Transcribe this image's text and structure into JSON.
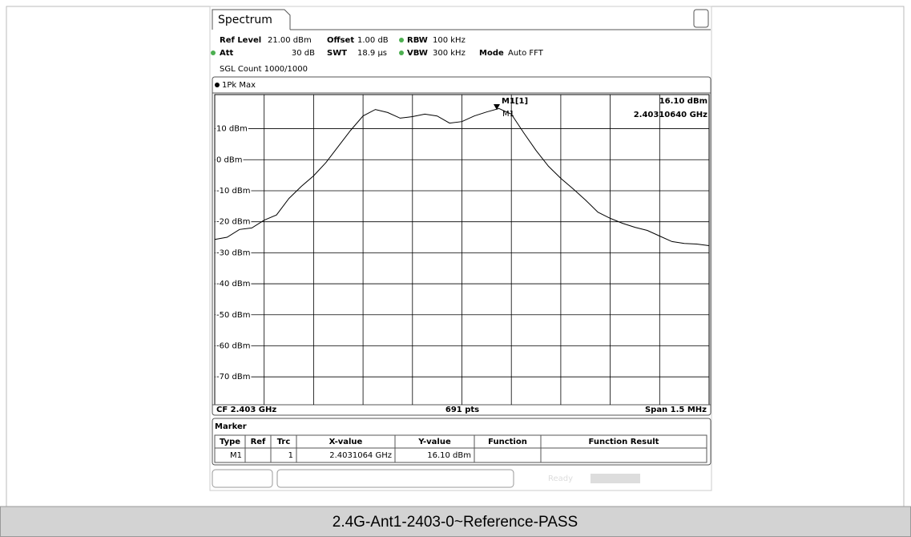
{
  "tab": "Spectrum",
  "settings": {
    "ref_level_label": "Ref Level",
    "ref_level": "21.00 dBm",
    "offset_label": "Offset",
    "offset": "1.00 dB",
    "rbw_label": "RBW",
    "rbw": "100 kHz",
    "att_label": "Att",
    "att": "30 dB",
    "swt_label": "SWT",
    "swt": "18.9 µs",
    "vbw_label": "VBW",
    "vbw": "300 kHz",
    "mode_label": "Mode",
    "mode": "Auto FFT",
    "sgl_count": "SGL Count 1000/1000"
  },
  "spectrum": {
    "trace_label": "1Pk Max",
    "ylim": [
      -79,
      21
    ],
    "yticks": [
      {
        "value": 10,
        "label": "10 dBm"
      },
      {
        "value": 0,
        "label": "0 dBm"
      },
      {
        "value": -10,
        "label": "-10 dBm"
      },
      {
        "value": -20,
        "label": "-20 dBm"
      },
      {
        "value": -30,
        "label": "-30 dBm"
      },
      {
        "value": -40,
        "label": "-40 dBm"
      },
      {
        "value": -50,
        "label": "-50 dBm"
      },
      {
        "value": -60,
        "label": "-60 dBm"
      },
      {
        "value": -70,
        "label": "-70 dBm"
      }
    ],
    "grid": true,
    "color": "#000000",
    "trace": [
      -25.7,
      -25,
      -22.5,
      -22,
      -19.5,
      -17.8,
      -12.5,
      -8.6,
      -5.2,
      -0.9,
      4.3,
      9.5,
      14.1,
      16.2,
      15.2,
      13.4,
      13.9,
      14.7,
      14.1,
      11.8,
      12.3,
      14.1,
      15.4,
      16.5,
      14.7,
      8.7,
      3,
      -2.1,
      -6,
      -9.4,
      -13,
      -16.9,
      -18.9,
      -20.5,
      -21.8,
      -22.8,
      -24.6,
      -26.4,
      -27,
      -27.2,
      -27.7
    ],
    "marker_name": "M1[1]",
    "marker_tag": "M1",
    "marker_y": 16.1,
    "marker_y_label": "16.10 dBm",
    "marker_x_label": "2.40310640 GHz",
    "cf": "CF 2.403 GHz",
    "pts": "691 pts",
    "span": "Span 1.5 MHz"
  },
  "marker_table": {
    "title": "Marker",
    "headers": [
      "Type",
      "Ref",
      "Trc",
      "X-value",
      "Y-value",
      "Function",
      "Function Result"
    ],
    "rows": [
      [
        "M1",
        "",
        "1",
        "2.4031064 GHz",
        "16.10 dBm",
        "",
        ""
      ]
    ]
  },
  "status": "Ready",
  "caption": "2.4G-Ant1-2403-0~Reference-PASS"
}
